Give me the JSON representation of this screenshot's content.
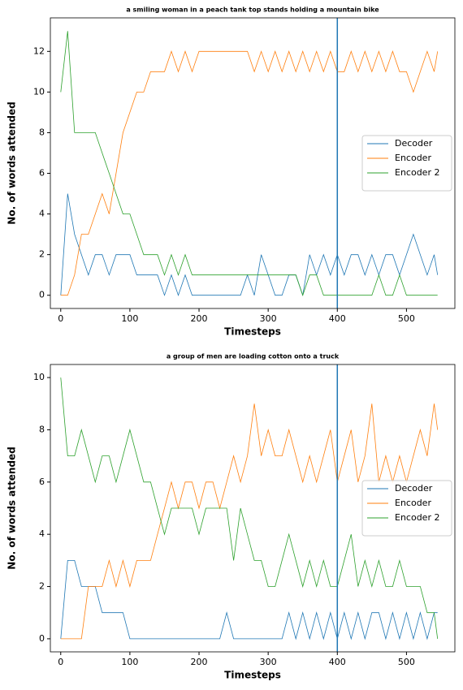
{
  "chart_data": [
    {
      "type": "line",
      "title": "a smiling woman in a peach tank top stands holding a mountain bike",
      "xlabel": "Timesteps",
      "ylabel": "No. of words attended",
      "x": [
        0,
        10,
        20,
        30,
        40,
        50,
        60,
        70,
        80,
        90,
        100,
        110,
        120,
        130,
        140,
        150,
        160,
        170,
        180,
        190,
        200,
        210,
        220,
        230,
        240,
        250,
        260,
        270,
        280,
        290,
        300,
        310,
        320,
        330,
        340,
        350,
        360,
        370,
        380,
        390,
        400,
        410,
        420,
        430,
        440,
        450,
        460,
        470,
        480,
        490,
        500,
        510,
        520,
        530,
        540,
        545
      ],
      "series": [
        {
          "name": "Decoder",
          "color": "#1f77b4",
          "values": [
            0,
            5,
            3,
            2,
            1,
            2,
            2,
            1,
            2,
            2,
            2,
            1,
            1,
            1,
            1,
            0,
            1,
            0,
            1,
            0,
            0,
            0,
            0,
            0,
            0,
            0,
            0,
            1,
            0,
            2,
            1,
            0,
            0,
            1,
            1,
            0,
            2,
            1,
            2,
            1,
            2,
            1,
            2,
            2,
            1,
            2,
            1,
            2,
            2,
            1,
            2,
            3,
            2,
            1,
            2,
            1
          ]
        },
        {
          "name": "Encoder",
          "color": "#ff7f0e",
          "values": [
            0,
            0,
            1,
            3,
            3,
            4,
            5,
            4,
            6,
            8,
            9,
            10,
            10,
            11,
            11,
            11,
            12,
            11,
            12,
            11,
            12,
            12,
            12,
            12,
            12,
            12,
            12,
            12,
            11,
            12,
            11,
            12,
            11,
            12,
            11,
            12,
            11,
            12,
            11,
            12,
            11,
            11,
            12,
            11,
            12,
            11,
            12,
            11,
            12,
            11,
            11,
            10,
            11,
            12,
            11,
            12
          ]
        },
        {
          "name": "Encoder 2",
          "color": "#2ca02c",
          "values": [
            10,
            13,
            8,
            8,
            8,
            8,
            7,
            6,
            5,
            4,
            4,
            3,
            2,
            2,
            2,
            1,
            2,
            1,
            2,
            1,
            1,
            1,
            1,
            1,
            1,
            1,
            1,
            1,
            1,
            1,
            1,
            1,
            1,
            1,
            1,
            0,
            1,
            1,
            0,
            0,
            0,
            0,
            0,
            0,
            0,
            0,
            1,
            0,
            0,
            1,
            0,
            0,
            0,
            0,
            0,
            0
          ]
        }
      ],
      "xlim": [
        -15,
        570
      ],
      "xticks": [
        0,
        100,
        200,
        300,
        400,
        500
      ],
      "ylim": [
        -0.65,
        13.65
      ],
      "yticks": [
        0,
        2,
        4,
        6,
        8,
        10,
        12
      ],
      "vline": 400,
      "vline_color": "#1f77b4",
      "legend": "center right"
    },
    {
      "type": "line",
      "title": "a group of men are loading cotton onto a truck",
      "xlabel": "Timesteps",
      "ylabel": "No. of words attended",
      "x": [
        0,
        10,
        20,
        30,
        40,
        50,
        60,
        70,
        80,
        90,
        100,
        110,
        120,
        130,
        140,
        150,
        160,
        170,
        180,
        190,
        200,
        210,
        220,
        230,
        240,
        250,
        260,
        270,
        280,
        290,
        300,
        310,
        320,
        330,
        340,
        350,
        360,
        370,
        380,
        390,
        400,
        410,
        420,
        430,
        440,
        450,
        460,
        470,
        480,
        490,
        500,
        510,
        520,
        530,
        540,
        545
      ],
      "series": [
        {
          "name": "Decoder",
          "color": "#1f77b4",
          "values": [
            0,
            3,
            3,
            2,
            2,
            2,
            1,
            1,
            1,
            1,
            0,
            0,
            0,
            0,
            0,
            0,
            0,
            0,
            0,
            0,
            0,
            0,
            0,
            0,
            1,
            0,
            0,
            0,
            0,
            0,
            0,
            0,
            0,
            1,
            0,
            1,
            0,
            1,
            0,
            1,
            0,
            1,
            0,
            1,
            0,
            1,
            1,
            0,
            1,
            0,
            1,
            0,
            1,
            0,
            1,
            1
          ]
        },
        {
          "name": "Encoder",
          "color": "#ff7f0e",
          "values": [
            0,
            0,
            0,
            0,
            2,
            2,
            2,
            3,
            2,
            3,
            2,
            3,
            3,
            3,
            4,
            5,
            6,
            5,
            6,
            6,
            5,
            6,
            6,
            5,
            6,
            7,
            6,
            7,
            9,
            7,
            8,
            7,
            7,
            8,
            7,
            6,
            7,
            6,
            7,
            8,
            6,
            7,
            8,
            6,
            7,
            9,
            6,
            7,
            6,
            7,
            6,
            7,
            8,
            7,
            9,
            8
          ]
        },
        {
          "name": "Encoder 2",
          "color": "#2ca02c",
          "values": [
            10,
            7,
            7,
            8,
            7,
            6,
            7,
            7,
            6,
            7,
            8,
            7,
            6,
            6,
            5,
            4,
            5,
            5,
            5,
            5,
            4,
            5,
            5,
            5,
            5,
            3,
            5,
            4,
            3,
            3,
            2,
            2,
            3,
            4,
            3,
            2,
            3,
            2,
            3,
            2,
            2,
            3,
            4,
            2,
            3,
            2,
            3,
            2,
            2,
            3,
            2,
            2,
            2,
            1,
            1,
            0
          ]
        }
      ],
      "xlim": [
        -15,
        570
      ],
      "xticks": [
        0,
        100,
        200,
        300,
        400,
        500
      ],
      "ylim": [
        -0.5,
        10.5
      ],
      "yticks": [
        0,
        2,
        4,
        6,
        8,
        10
      ],
      "vline": 400,
      "vline_color": "#1f77b4",
      "legend": "center right"
    }
  ]
}
